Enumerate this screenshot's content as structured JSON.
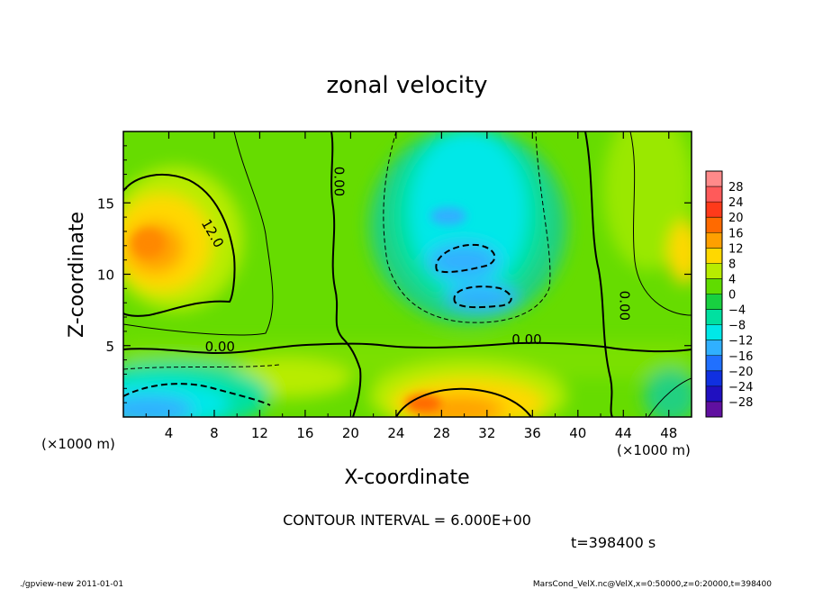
{
  "chart_data": {
    "type": "heatmap",
    "title": "zonal velocity",
    "xlabel": "X-coordinate",
    "ylabel": "Z-coordinate",
    "x_unit": "(×1000 m)",
    "y_unit": "(×1000 m)",
    "x_range": [
      0,
      50
    ],
    "y_range": [
      0,
      20
    ],
    "x_ticks": [
      4,
      8,
      12,
      16,
      20,
      24,
      28,
      32,
      36,
      40,
      44,
      48
    ],
    "y_ticks": [
      5,
      10,
      15
    ],
    "contour_interval_text": "CONTOUR INTERVAL = 6.000E+00",
    "time_text": "t=398400 s",
    "footer_left": "./gpview-new  2011-01-01",
    "footer_right": "MarsCond_VelX.nc@VelX,x=0:50000,z=0:20000,t=398400",
    "contour_labels": [
      {
        "text": "12.0",
        "x": 7.5,
        "y": 12.7
      },
      {
        "text": "0.00",
        "x": 18.6,
        "y": 16.5
      },
      {
        "text": "0.00",
        "x": 8.5,
        "y": 4.6
      },
      {
        "text": "0.00",
        "x": 35.5,
        "y": 5.1
      },
      {
        "text": "0.00",
        "x": 43.7,
        "y": 7.8
      }
    ],
    "colorbar": {
      "labels": [
        "28",
        "24",
        "20",
        "16",
        "12",
        "8",
        "4",
        "0",
        "−4",
        "−8",
        "−12",
        "−16",
        "−20",
        "−24",
        "−28"
      ],
      "colors": [
        "#ff8a8a",
        "#ff5a5a",
        "#ff3a1a",
        "#ff6a00",
        "#ffa000",
        "#ffd800",
        "#b8ec00",
        "#60dc00",
        "#18d040",
        "#00e0a0",
        "#00e8e8",
        "#30b0ff",
        "#2070ff",
        "#1030e0",
        "#2010c0",
        "#6010a0"
      ]
    },
    "features": [
      {
        "name": "positive maximum",
        "x": 3,
        "y": 11.5,
        "value": 14
      },
      {
        "name": "negative core",
        "x": 30,
        "y": 11,
        "value": -11
      },
      {
        "name": "negative core",
        "x": 30,
        "y": 8,
        "value": -11
      },
      {
        "name": "near-surface negative",
        "x": 5,
        "y": 1,
        "value": -16
      },
      {
        "name": "near-surface positive",
        "x": 30,
        "y": 1,
        "value": 12
      },
      {
        "name": "upper right positive",
        "x": 49.5,
        "y": 12,
        "value": 8
      }
    ]
  }
}
